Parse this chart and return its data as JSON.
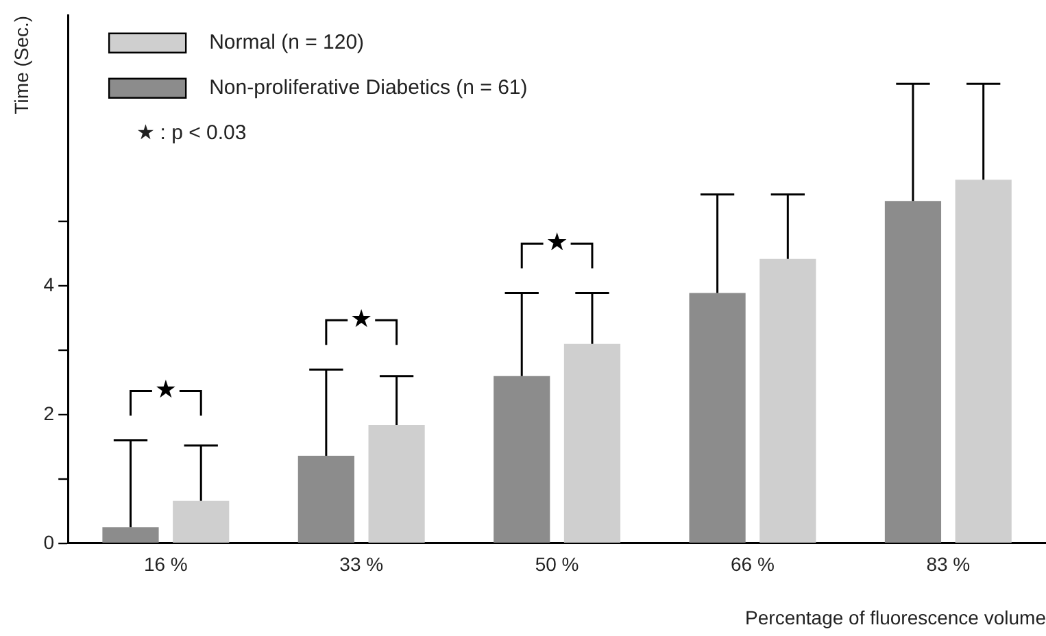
{
  "chart_data": {
    "type": "bar",
    "ylabel": "Time (Sec.)",
    "xlabel": "Percentage of fluorescence volume",
    "categories": [
      "16 %",
      "33 %",
      "50 %",
      "66 %",
      "83 %"
    ],
    "series": [
      {
        "name": "Non-proliferative Diabetics (n = 61)",
        "color": "#8c8c8c",
        "values": [
          0.25,
          1.36,
          2.6,
          3.89,
          5.32
        ],
        "errors": [
          [
            0.25,
            1.6
          ],
          [
            1.36,
            2.7
          ],
          [
            2.6,
            3.89
          ],
          [
            3.89,
            5.42
          ],
          [
            5.32,
            7.14
          ]
        ]
      },
      {
        "name": "Normal (n = 120)",
        "color": "#cfcfcf",
        "values": [
          0.66,
          1.84,
          3.1,
          4.42,
          5.65
        ],
        "errors": [
          [
            0.66,
            1.52
          ],
          [
            1.84,
            2.6
          ],
          [
            3.1,
            3.89
          ],
          [
            4.42,
            5.42
          ],
          [
            5.65,
            7.14
          ]
        ]
      }
    ],
    "ylim": [
      0,
      8.2
    ],
    "yticks": [
      0,
      {
        "value": 1,
        "label": null
      },
      2,
      {
        "value": 3,
        "label": null
      },
      4,
      {
        "value": 5,
        "label": null
      }
    ],
    "grid": false,
    "legend": "top left",
    "annotations": [
      "★",
      "★",
      "★",
      "★ : p < 0.03"
    ]
  }
}
